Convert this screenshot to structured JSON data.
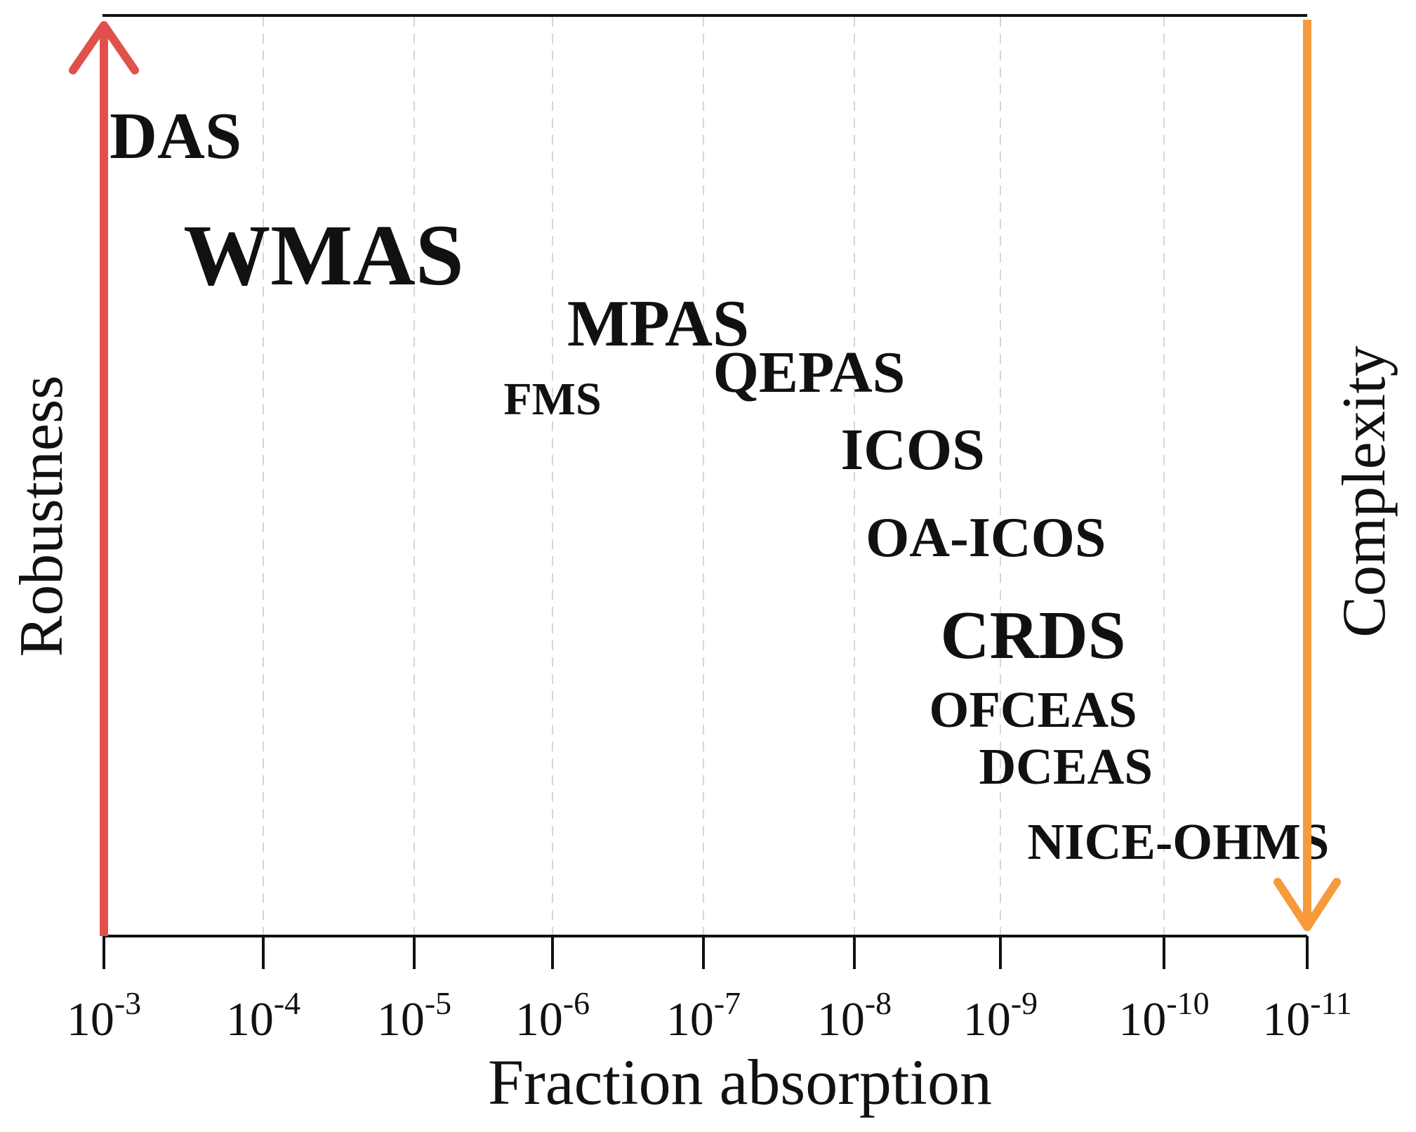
{
  "chart_data": {
    "type": "scatter",
    "xlabel": "Fraction absorption",
    "x_scale": "log-reversed",
    "x_ticks": [
      {
        "exp": -3,
        "label": "10-3"
      },
      {
        "exp": -4,
        "label": "10-4"
      },
      {
        "exp": -5,
        "label": "10-5"
      },
      {
        "exp": -6,
        "label": "10-6"
      },
      {
        "exp": -7,
        "label": "10-7"
      },
      {
        "exp": -8,
        "label": "10-8"
      },
      {
        "exp": -9,
        "label": "10-9"
      },
      {
        "exp": -10,
        "label": "10-10"
      },
      {
        "exp": -11,
        "label": "10-11"
      }
    ],
    "left_axis_label": "Robustness",
    "left_axis_color": "#e0514c",
    "right_axis_label": "Complexity",
    "right_axis_color": "#f79a3c",
    "grid": "vertical-dashed",
    "techniques": [
      {
        "name": "DAS",
        "exp": -3.45,
        "rank": 1,
        "emphasis": 0.62
      },
      {
        "name": "WMAS",
        "exp": -4.4,
        "rank": 2,
        "emphasis": 1.0
      },
      {
        "name": "MPAS",
        "exp": -6.7,
        "rank": 3,
        "emphasis": 0.62
      },
      {
        "name": "FMS",
        "exp": -6.0,
        "rank": 4,
        "emphasis": 0.28
      },
      {
        "name": "QEPAS",
        "exp": -7.7,
        "rank": 5,
        "emphasis": 0.5
      },
      {
        "name": "ICOS",
        "exp": -8.4,
        "rank": 6,
        "emphasis": 0.5
      },
      {
        "name": "OA-ICOS",
        "exp": -8.9,
        "rank": 7,
        "emphasis": 0.45
      },
      {
        "name": "CRDS",
        "exp": -9.2,
        "rank": 8,
        "emphasis": 0.66
      },
      {
        "name": "OFCEAS",
        "exp": -9.2,
        "rank": 9,
        "emphasis": 0.36
      },
      {
        "name": "DCEAS",
        "exp": -9.4,
        "rank": 10,
        "emphasis": 0.36
      },
      {
        "name": "NICE-OHMS",
        "exp": -10.1,
        "rank": 11,
        "emphasis": 0.36
      }
    ]
  }
}
